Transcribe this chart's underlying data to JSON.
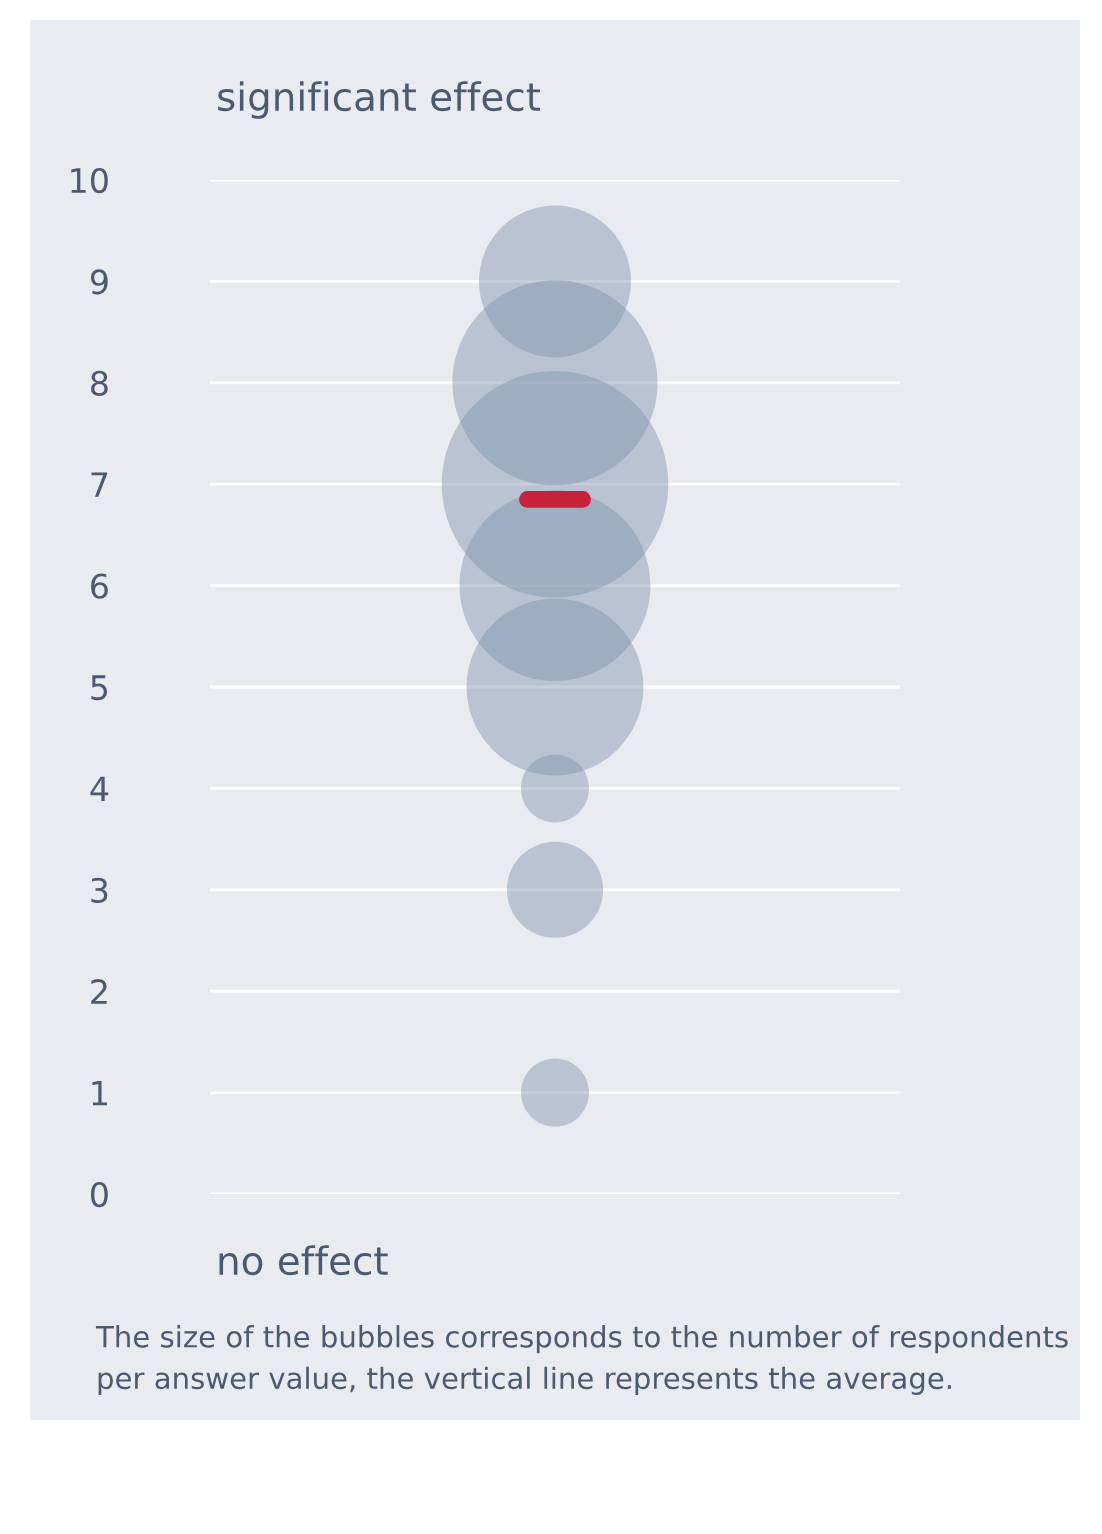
{
  "chart_data": {
    "type": "bubble",
    "categories": [
      null
    ],
    "series": [
      {
        "color": "#8193ab",
        "values": [
          1
        ],
        "sizes": [
          0.09
        ]
      },
      {
        "color": "#8193ab",
        "values": [
          3
        ],
        "sizes": [
          0.18
        ]
      },
      {
        "color": "#8193ab",
        "values": [
          4
        ],
        "sizes": [
          0.09
        ]
      },
      {
        "color": "#8193ab",
        "values": [
          5
        ],
        "sizes": [
          0.61
        ]
      },
      {
        "color": "#8193ab",
        "values": [
          6
        ],
        "sizes": [
          0.71
        ]
      },
      {
        "color": "#8193ab",
        "values": [
          7
        ],
        "sizes": [
          1
        ]
      },
      {
        "color": "#8193ab",
        "values": [
          8
        ],
        "sizes": [
          0.82
        ]
      },
      {
        "color": "#8193ab",
        "values": [
          9
        ],
        "sizes": [
          0.45
        ]
      }
    ],
    "ylim": [
      0,
      10
    ],
    "yticks": [
      0,
      1,
      2,
      3,
      4,
      5,
      6,
      7,
      8,
      9,
      10
    ],
    "grid": "y",
    "ref_lines": [
      {
        "axis": "y",
        "value": 6.85,
        "color": "#c8213a"
      }
    ],
    "annotations": [
      "significant effect",
      "no effect",
      "The size of the bubbles corresponds to the number of respondents per answer value, the vertical line represents the average."
    ]
  }
}
